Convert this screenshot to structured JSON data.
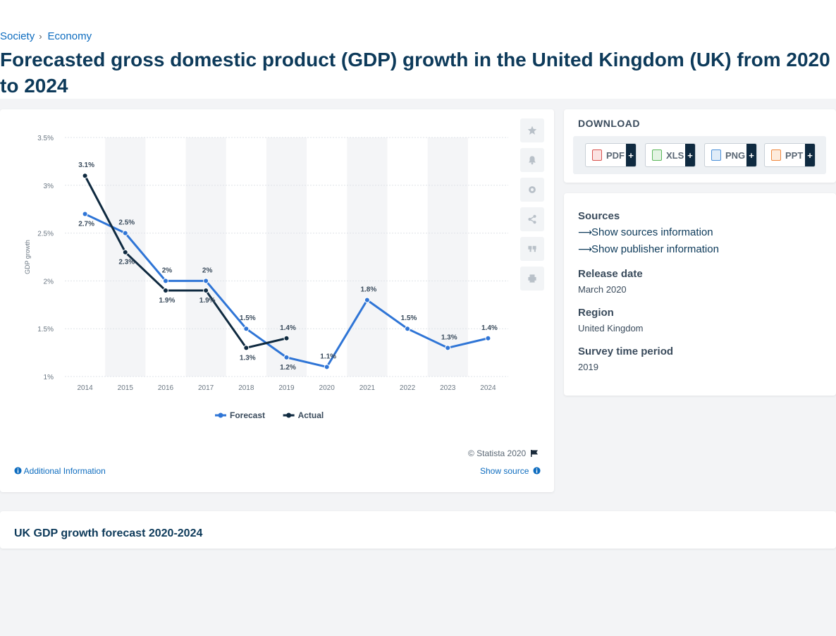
{
  "breadcrumb": {
    "item1": "Society",
    "item2": "Economy",
    "separator": "›"
  },
  "page_title": "Forecasted gross domestic product (GDP) growth in the United Kingdom (UK) from 2020 to 2024",
  "download": {
    "title": "DOWNLOAD",
    "buttons": [
      {
        "label": "PDF",
        "icon": "pdf-file-icon",
        "color": "#d9534f"
      },
      {
        "label": "XLS",
        "icon": "xls-file-icon",
        "color": "#5cb85c"
      },
      {
        "label": "PNG",
        "icon": "png-file-icon",
        "color": "#4a90d9"
      },
      {
        "label": "PPT",
        "icon": "ppt-file-icon",
        "color": "#f0883e"
      }
    ],
    "plus": "+"
  },
  "info": {
    "sources_label": "Sources",
    "show_sources": "Show sources information",
    "show_publisher": "Show publisher information",
    "release_label": "Release date",
    "release_value": "March 2020",
    "region_label": "Region",
    "region_value": "United Kingdom",
    "survey_label": "Survey time period",
    "survey_value": "2019"
  },
  "side_tools": [
    "star-icon",
    "bell-icon",
    "gear-icon",
    "share-icon",
    "quote-icon",
    "print-icon"
  ],
  "footer": {
    "copyright": "© Statista 2020",
    "additional": "Additional Information",
    "show_source": "Show source"
  },
  "bottom_title": "UK GDP growth forecast 2020-2024",
  "chart_data": {
    "type": "line",
    "title": "",
    "xlabel": "",
    "ylabel": "GDP growth",
    "ylim": [
      1,
      3.5
    ],
    "yticks": [
      {
        "value": 1,
        "label": "1%"
      },
      {
        "value": 1.5,
        "label": "1.5%"
      },
      {
        "value": 2,
        "label": "2%"
      },
      {
        "value": 2.5,
        "label": "2.5%"
      },
      {
        "value": 3,
        "label": "3%"
      },
      {
        "value": 3.5,
        "label": "3.5%"
      }
    ],
    "categories": [
      "2014",
      "2015",
      "2016",
      "2017",
      "2018",
      "2019",
      "2020",
      "2021",
      "2022",
      "2023",
      "2024"
    ],
    "series": [
      {
        "name": "Forecast",
        "color": "#2f75d6",
        "values": [
          2.7,
          2.5,
          2.0,
          2.0,
          1.5,
          1.2,
          1.1,
          1.8,
          1.5,
          1.3,
          1.4
        ],
        "labels": [
          "2.7%",
          "2.5%",
          "2%",
          "2%",
          "1.5%",
          "1.2%",
          "1.1%",
          "1.8%",
          "1.5%",
          "1.3%",
          "1.4%"
        ]
      },
      {
        "name": "Actual",
        "color": "#0f2a40",
        "values": [
          3.1,
          2.3,
          1.9,
          1.9,
          1.3,
          1.4,
          null,
          null,
          null,
          null,
          null
        ],
        "labels": [
          "3.1%",
          "2.3%",
          "1.9%",
          "1.9%",
          "1.3%",
          "1.4%",
          null,
          null,
          null,
          null,
          null
        ]
      }
    ],
    "grid": true,
    "legend": "bottom-center"
  }
}
